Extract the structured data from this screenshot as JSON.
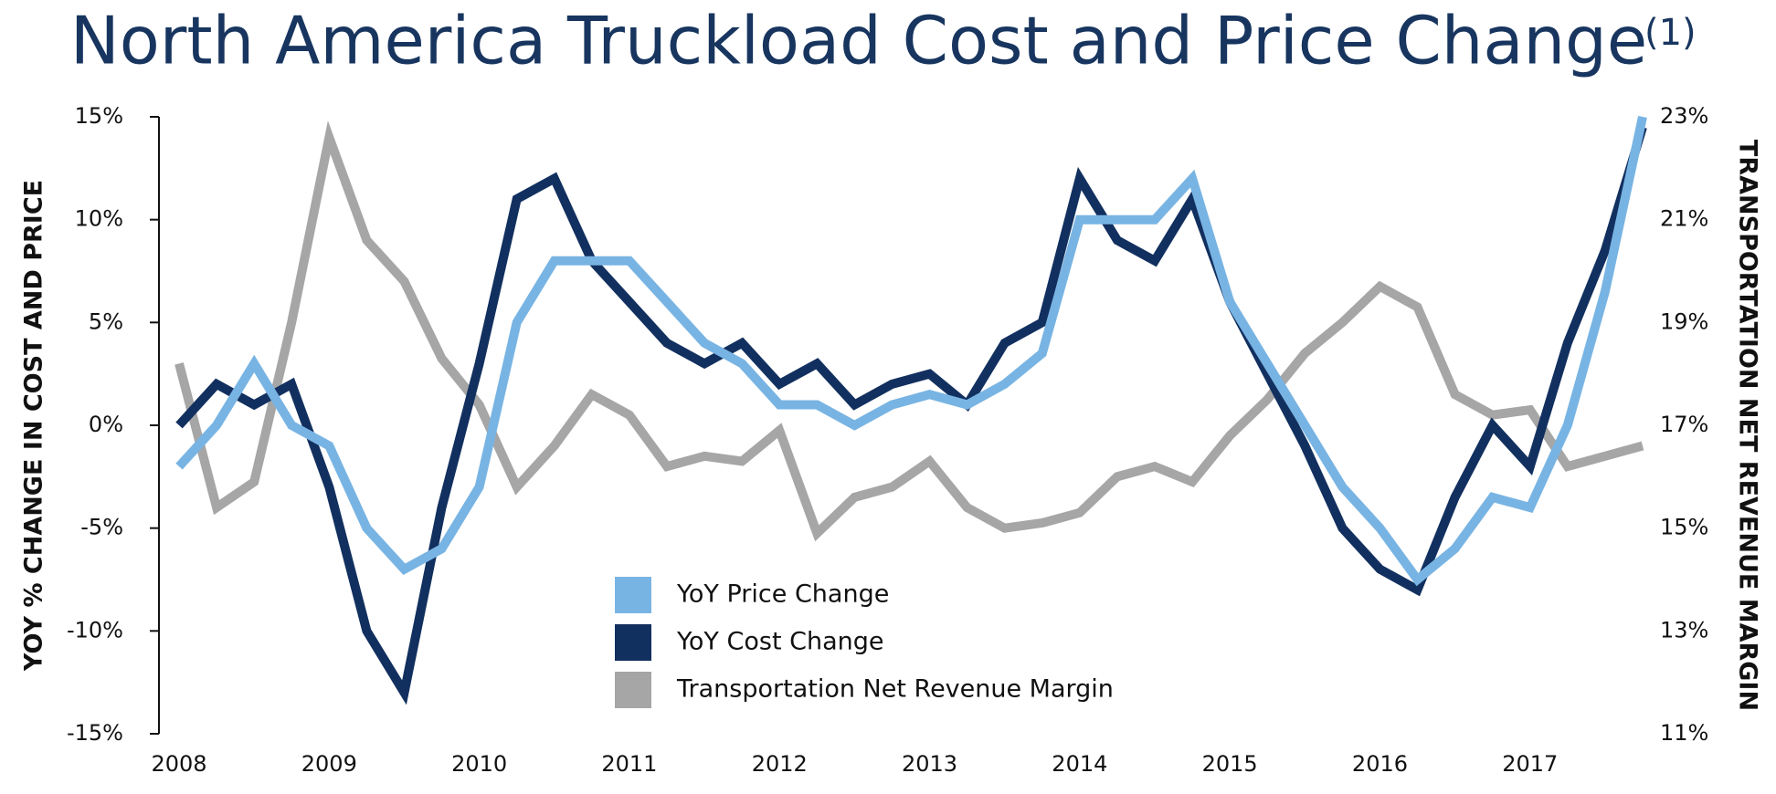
{
  "chart_data": {
    "type": "line",
    "title": "North America Truckload Cost and Price Change",
    "title_note": "(1)",
    "y_label": "YOY % CHANGE IN COST AND PRICE",
    "y2_label": "TRANSPORTATION NET REVENUE MARGIN",
    "x": [
      2008,
      2008.25,
      2008.5,
      2008.75,
      2009,
      2009.25,
      2009.5,
      2009.75,
      2010,
      2010.25,
      2010.5,
      2010.75,
      2011,
      2011.25,
      2011.5,
      2011.75,
      2012,
      2012.25,
      2012.5,
      2012.75,
      2013,
      2013.25,
      2013.5,
      2013.75,
      2014,
      2014.25,
      2014.5,
      2014.75,
      2015,
      2015.25,
      2015.5,
      2015.75,
      2016,
      2016.25,
      2016.5,
      2016.75,
      2017,
      2017.25,
      2017.5,
      2017.75
    ],
    "xlim": [
      2008,
      2017.75
    ],
    "xticks": [
      2008,
      2009,
      2010,
      2011,
      2012,
      2013,
      2014,
      2015,
      2016,
      2017
    ],
    "ylim": [
      -15,
      15
    ],
    "yticks": [
      {
        "value": -15,
        "label": "-15%"
      },
      {
        "value": -10,
        "label": "-10%"
      },
      {
        "value": -5,
        "label": "-5%"
      },
      {
        "value": 0,
        "label": "0%"
      },
      {
        "value": 5,
        "label": "5%"
      },
      {
        "value": 10,
        "label": "10%"
      },
      {
        "value": 15,
        "label": "15%"
      }
    ],
    "y2lim": [
      11,
      23
    ],
    "y2ticks": [
      {
        "value": 11,
        "label": "11%"
      },
      {
        "value": 13,
        "label": "13%"
      },
      {
        "value": 15,
        "label": "15%"
      },
      {
        "value": 17,
        "label": "17%"
      },
      {
        "value": 19,
        "label": "19%"
      },
      {
        "value": 21,
        "label": "21%"
      },
      {
        "value": 23,
        "label": "23%"
      }
    ],
    "series": [
      {
        "name": "Transportation Net Revenue Margin",
        "color": "#a6a6a6",
        "axis": "y2",
        "values": [
          18.2,
          15.4,
          15.9,
          19.0,
          22.6,
          20.6,
          19.8,
          18.3,
          17.4,
          15.8,
          16.6,
          17.6,
          17.2,
          16.2,
          16.4,
          16.3,
          16.9,
          14.9,
          15.6,
          15.8,
          16.3,
          15.4,
          15.0,
          15.1,
          15.3,
          16.0,
          16.2,
          15.9,
          16.8,
          17.5,
          18.4,
          19.0,
          19.7,
          19.3,
          17.6,
          17.2,
          17.3,
          16.2,
          16.4,
          16.6
        ]
      },
      {
        "name": "YoY Cost Change",
        "color": "#12305f",
        "values": [
          0,
          2,
          1,
          2,
          -3,
          -10,
          -13,
          -4,
          3,
          11,
          12,
          8,
          6,
          4,
          3,
          4,
          2,
          3,
          1,
          2,
          2.5,
          1,
          4,
          5,
          12,
          9,
          8,
          11,
          6,
          2.5,
          -1,
          -5,
          -7,
          -8,
          -3.5,
          0,
          -2,
          4,
          8.5,
          14.5
        ]
      },
      {
        "name": "YoY Price Change",
        "color": "#78b4e3",
        "values": [
          -2,
          0,
          3,
          0,
          -1,
          -5,
          -7,
          -6,
          -3,
          5,
          8,
          8,
          8,
          6,
          4,
          3,
          1,
          1,
          0,
          1,
          1.5,
          1,
          2,
          3.5,
          10,
          10,
          10,
          12,
          6,
          3,
          0,
          -3,
          -5,
          -7.5,
          -6,
          -3.5,
          -4,
          0,
          6.5,
          15
        ]
      }
    ],
    "legend_order": [
      2,
      1,
      0
    ]
  }
}
